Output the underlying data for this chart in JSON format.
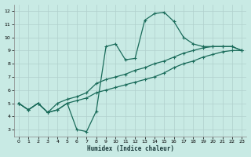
{
  "xlabel": "Humidex (Indice chaleur)",
  "bg_color": "#c8eae4",
  "grid_color": "#b0d0cc",
  "line_color": "#1a6b5a",
  "xlim": [
    -0.5,
    23.5
  ],
  "ylim": [
    2.5,
    12.5
  ],
  "xticks": [
    0,
    1,
    2,
    3,
    4,
    5,
    6,
    7,
    8,
    9,
    10,
    11,
    12,
    13,
    14,
    15,
    16,
    17,
    18,
    19,
    20,
    21,
    22,
    23
  ],
  "yticks": [
    3,
    4,
    5,
    6,
    7,
    8,
    9,
    10,
    11,
    12
  ],
  "line_peak_x": [
    0,
    1,
    2,
    3,
    4,
    5,
    6,
    7,
    8,
    9,
    10,
    11,
    12,
    13,
    14,
    15,
    16,
    17,
    18,
    19,
    20,
    21,
    22,
    23
  ],
  "line_peak_y": [
    5.0,
    4.5,
    5.0,
    4.3,
    4.5,
    5.0,
    3.0,
    2.85,
    4.4,
    9.3,
    9.5,
    8.3,
    8.4,
    11.3,
    11.8,
    11.9,
    11.2,
    10.0,
    9.5,
    9.3,
    9.3,
    9.3,
    9.3,
    9.0
  ],
  "line_upper_x": [
    0,
    1,
    2,
    3,
    4,
    5,
    6,
    7,
    8,
    9,
    10,
    11,
    12,
    13,
    14,
    15,
    16,
    17,
    18,
    19,
    20,
    21,
    22,
    23
  ],
  "line_upper_y": [
    5.0,
    4.5,
    5.0,
    4.3,
    5.0,
    5.3,
    5.5,
    5.8,
    6.5,
    6.8,
    7.0,
    7.2,
    7.5,
    7.7,
    8.0,
    8.2,
    8.5,
    8.8,
    9.0,
    9.2,
    9.3,
    9.3,
    9.3,
    9.0
  ],
  "line_lower_x": [
    0,
    1,
    2,
    3,
    4,
    5,
    6,
    7,
    8,
    9,
    10,
    11,
    12,
    13,
    14,
    15,
    16,
    17,
    18,
    19,
    20,
    21,
    22,
    23
  ],
  "line_lower_y": [
    5.0,
    4.5,
    5.0,
    4.3,
    4.5,
    5.0,
    5.2,
    5.4,
    5.8,
    6.0,
    6.2,
    6.4,
    6.6,
    6.8,
    7.0,
    7.3,
    7.7,
    8.0,
    8.2,
    8.5,
    8.7,
    8.9,
    9.0,
    9.0
  ]
}
